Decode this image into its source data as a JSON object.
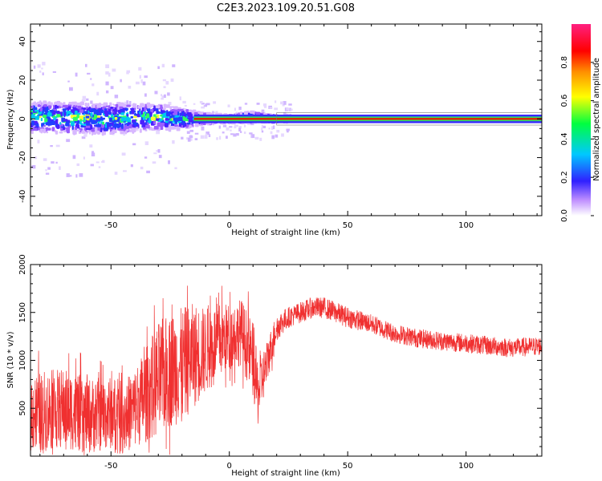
{
  "title": "C2E3.2023.109.20.51.G08",
  "colors": {
    "snr_line": "#f03030",
    "band_center": "#e02000",
    "band_edge": "#4020ff"
  },
  "chart_data": [
    {
      "type": "heatmap",
      "title": "C2E3.2023.109.20.51.G08",
      "xlabel": "Height of straight line (km)",
      "ylabel": "Frequency (Hz)",
      "xlim": [
        -84,
        132
      ],
      "ylim": [
        -50,
        49
      ],
      "xticks": [
        -50,
        0,
        50,
        100
      ],
      "yticks": [
        -40,
        -20,
        0,
        20,
        40
      ],
      "colorbar": {
        "label": "Normalized spectral amplitude",
        "range": [
          0,
          1
        ],
        "ticks": [
          "0.0",
          "0.2",
          "0.4",
          "0.6",
          "0.8"
        ],
        "colormap": [
          "#ffffff",
          "#b070ff",
          "#3020ff",
          "#00c0ff",
          "#00ff40",
          "#ffff00",
          "#ff8000",
          "#ff0000",
          "#ff2080"
        ]
      },
      "band": {
        "x": [
          -84,
          -50,
          -30,
          -20,
          -10,
          0,
          10,
          20,
          132
        ],
        "center_hz": [
          1,
          0,
          1,
          0,
          0,
          0,
          1,
          0,
          0
        ],
        "halfwidth_hz": [
          6,
          6,
          5,
          4,
          2,
          1.5,
          2,
          1.2,
          1
        ]
      },
      "grid": false,
      "legend": "none"
    },
    {
      "type": "line",
      "xlabel": "Height of straight line (km)",
      "ylabel": "SNR (10 * v/v)",
      "xlim": [
        -84,
        132
      ],
      "ylim": [
        0,
        2000
      ],
      "xticks": [
        -50,
        0,
        50,
        100
      ],
      "yticks": [
        500,
        1000,
        1500,
        2000
      ],
      "series": [
        {
          "x": [
            -84,
            -70,
            -60,
            -50,
            -45,
            -40,
            -35,
            -30,
            -25,
            -20,
            -15,
            -10,
            -5,
            0,
            5,
            10,
            12,
            15,
            20,
            25,
            30,
            35,
            40,
            50,
            60,
            70,
            80,
            90,
            100,
            110,
            120,
            132
          ],
          "values": [
            450,
            500,
            420,
            450,
            400,
            500,
            650,
            800,
            900,
            950,
            1050,
            1100,
            1200,
            1250,
            1300,
            1000,
            650,
            900,
            1350,
            1450,
            1500,
            1550,
            1550,
            1450,
            1380,
            1280,
            1230,
            1200,
            1180,
            1150,
            1130,
            1150
          ],
          "noise": [
            420,
            420,
            400,
            380,
            380,
            420,
            500,
            600,
            600,
            600,
            550,
            450,
            400,
            350,
            350,
            400,
            350,
            250,
            150,
            110,
            110,
            110,
            110,
            110,
            100,
            100,
            100,
            100,
            100,
            100,
            100,
            100
          ]
        }
      ],
      "grid": false,
      "legend": "none"
    }
  ]
}
